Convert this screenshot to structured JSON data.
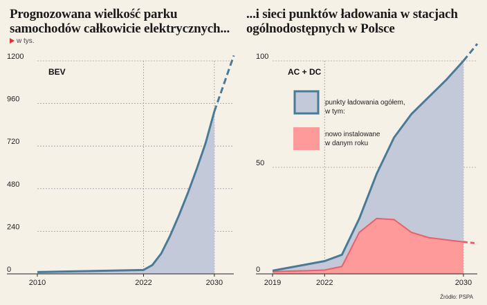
{
  "left_title": "Prognozowana wielkość parku samochodów całkowicie elektrycznych...",
  "right_title": "...i sieci punktów ładowania w stacjach ogólnodostępnych w Polsce",
  "unit_note": "w tys.",
  "source_note": "Źródło: PSPA",
  "colors": {
    "line": "#4a7a96",
    "area": "#c3c9d9",
    "new_area": "#ff9a9a",
    "new_line": "#e8616a",
    "grid": "#9a9a9a"
  },
  "chart_data": [
    {
      "type": "area",
      "panel_label": "BEV",
      "x_ticks": [
        "2010",
        "2022",
        "2030"
      ],
      "y_ticks": [
        "0",
        "240",
        "480",
        "720",
        "960",
        "1200"
      ],
      "xlim": [
        2010,
        2032.2
      ],
      "ylim": [
        0,
        1200
      ],
      "series": [
        {
          "x": [
            2010,
            2011,
            2012,
            2013,
            2014,
            2015,
            2016,
            2017,
            2018,
            2019,
            2020,
            2021,
            2022,
            2023,
            2024,
            2025,
            2026,
            2027,
            2028,
            2029,
            2030
          ],
          "y": [
            10,
            11,
            12,
            13,
            14,
            15,
            16,
            17,
            18,
            19,
            20,
            21,
            22,
            50,
            115,
            215,
            330,
            455,
            590,
            735,
            915
          ]
        }
      ],
      "projection": {
        "x": [
          2030,
          2032.2
        ],
        "y": [
          915,
          1230
        ]
      }
    },
    {
      "type": "area",
      "panel_label": "AC + DC",
      "x_ticks": [
        "2019",
        "2022",
        "2030"
      ],
      "y_ticks": [
        "0",
        "50",
        "100"
      ],
      "xlim": [
        2019,
        2030.8
      ],
      "ylim": [
        0,
        100
      ],
      "legend": [
        {
          "label": "punkty ładowania ogółem,\nw tym:"
        },
        {
          "label": "nowo instalowane\nw danym roku"
        }
      ],
      "series": [
        {
          "label": "punkty ładowania ogółem, w tym:",
          "x": [
            2019,
            2020,
            2021,
            2022,
            2023,
            2024,
            2025,
            2026,
            2027,
            2028,
            2029,
            2030
          ],
          "y": [
            1.5,
            3,
            4.5,
            6,
            9,
            26,
            47,
            64,
            75,
            83,
            91,
            100
          ]
        },
        {
          "label": "nowo instalowane w danym roku",
          "x": [
            2019,
            2020,
            2021,
            2022,
            2023,
            2024,
            2025,
            2026,
            2027,
            2028,
            2029,
            2030
          ],
          "y": [
            1,
            1.3,
            1.5,
            1.8,
            3.5,
            19.5,
            26,
            25.5,
            19.5,
            17,
            16,
            15
          ]
        }
      ],
      "projection": {
        "x": [
          2030,
          2030.8
        ],
        "y": [
          100,
          108
        ]
      },
      "projection_new": {
        "x": [
          2030,
          2030.8
        ],
        "y": [
          15,
          14.3
        ]
      }
    }
  ]
}
